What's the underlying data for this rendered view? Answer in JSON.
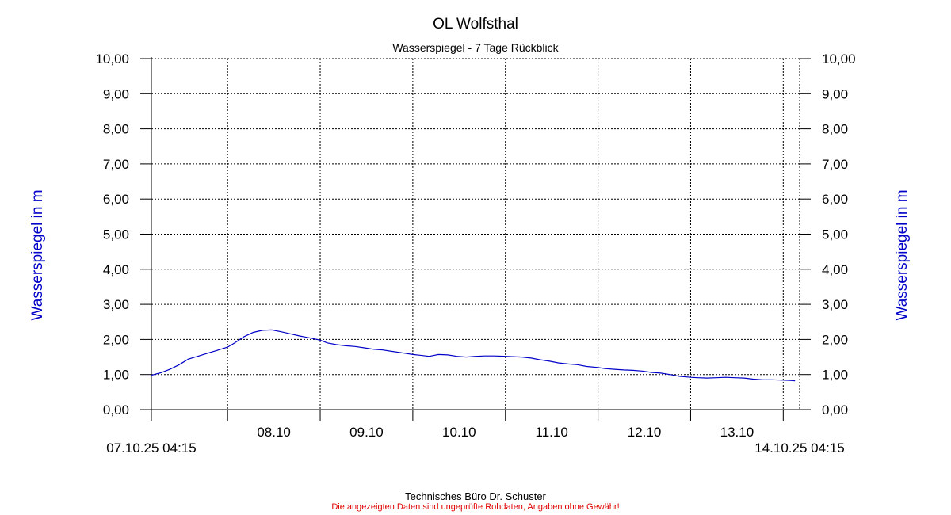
{
  "chart_data": {
    "type": "line",
    "title": "OL Wolfsthal",
    "subtitle": "Wasserspiegel - 7 Tage Rückblick",
    "ylabel_left": "Wasserspiegel in m",
    "ylabel_right": "Wasserspiegel in m",
    "ylim": [
      0,
      10
    ],
    "yticks": [
      "0,00",
      "1,00",
      "2,00",
      "3,00",
      "4,00",
      "5,00",
      "6,00",
      "7,00",
      "8,00",
      "9,00",
      "10,00"
    ],
    "xlim_days": [
      0,
      7
    ],
    "x_day_ticks": [
      {
        "label": "08.10",
        "day": 0.823
      },
      {
        "label": "09.10",
        "day": 1.823
      },
      {
        "label": "10.10",
        "day": 2.823
      },
      {
        "label": "11.10",
        "day": 3.823
      },
      {
        "label": "12.10",
        "day": 4.823
      },
      {
        "label": "13.10",
        "day": 5.823
      },
      {
        "label": "",
        "day": 6.823
      }
    ],
    "x_start_label": "07.10.25 04:15",
    "x_end_label": "14.10.25 04:15",
    "grid": true,
    "line_color": "#0000c8",
    "series": [
      {
        "name": "",
        "x": [
          0.0,
          0.1,
          0.2,
          0.3,
          0.4,
          0.5,
          0.6,
          0.7,
          0.823,
          0.9,
          1.0,
          1.1,
          1.2,
          1.3,
          1.4,
          1.5,
          1.6,
          1.7,
          1.823,
          1.9,
          2.0,
          2.1,
          2.2,
          2.3,
          2.4,
          2.5,
          2.6,
          2.7,
          2.823,
          2.9,
          3.0,
          3.1,
          3.2,
          3.3,
          3.4,
          3.5,
          3.6,
          3.7,
          3.823,
          3.9,
          4.0,
          4.1,
          4.2,
          4.3,
          4.4,
          4.5,
          4.6,
          4.7,
          4.823,
          4.9,
          5.0,
          5.1,
          5.2,
          5.3,
          5.4,
          5.5,
          5.6,
          5.7,
          5.823,
          5.9,
          6.0,
          6.1,
          6.2,
          6.3,
          6.4,
          6.5,
          6.6,
          6.7,
          6.823,
          6.9,
          6.95
        ],
        "y": [
          0.98,
          1.05,
          1.15,
          1.28,
          1.44,
          1.52,
          1.6,
          1.68,
          1.78,
          1.9,
          2.08,
          2.2,
          2.26,
          2.27,
          2.22,
          2.16,
          2.1,
          2.05,
          1.98,
          1.9,
          1.85,
          1.82,
          1.8,
          1.76,
          1.72,
          1.7,
          1.66,
          1.62,
          1.57,
          1.55,
          1.52,
          1.57,
          1.56,
          1.52,
          1.5,
          1.52,
          1.53,
          1.53,
          1.52,
          1.51,
          1.5,
          1.47,
          1.42,
          1.38,
          1.33,
          1.3,
          1.28,
          1.23,
          1.2,
          1.17,
          1.15,
          1.13,
          1.12,
          1.1,
          1.06,
          1.04,
          1.0,
          0.95,
          0.92,
          0.91,
          0.9,
          0.91,
          0.92,
          0.91,
          0.9,
          0.87,
          0.85,
          0.85,
          0.84,
          0.83,
          0.82
        ]
      }
    ]
  },
  "footer": {
    "credit": "Technisches Büro Dr. Schuster",
    "disclaimer": "Die angezeigten Daten sind ungeprüfte Rohdaten, Angaben ohne Gewähr!"
  }
}
